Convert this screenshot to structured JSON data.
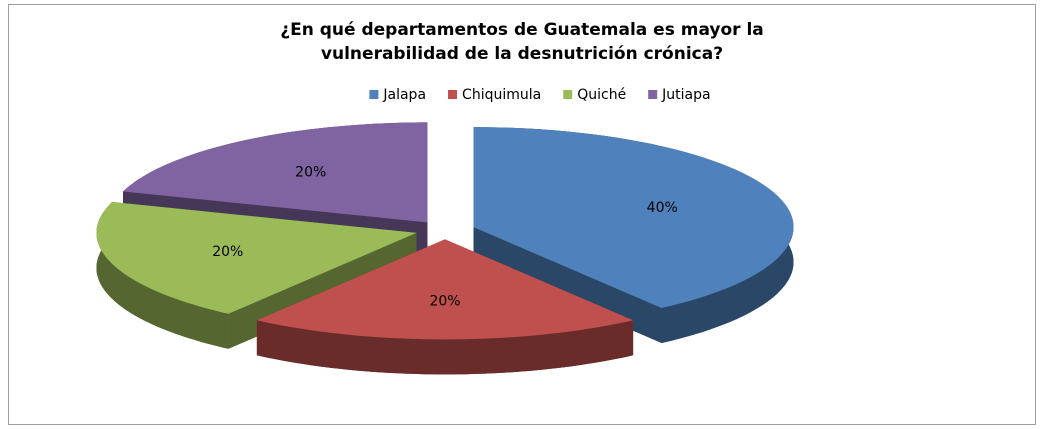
{
  "chart_data": {
    "type": "pie3d",
    "title": "¿En qué departamentos de Guatemala es mayor la vulnerabilidad  de la desnutrición crónica?",
    "categories": [
      "Jalapa",
      "Chiquimula",
      "Quiché",
      "Jutiapa"
    ],
    "values": [
      40,
      20,
      20,
      20
    ],
    "value_labels": [
      "40%",
      "20%",
      "20%",
      "20%"
    ],
    "colors": [
      "#4f81bd",
      "#c0504d",
      "#9bbb59",
      "#8064a2"
    ],
    "legend": "top"
  }
}
